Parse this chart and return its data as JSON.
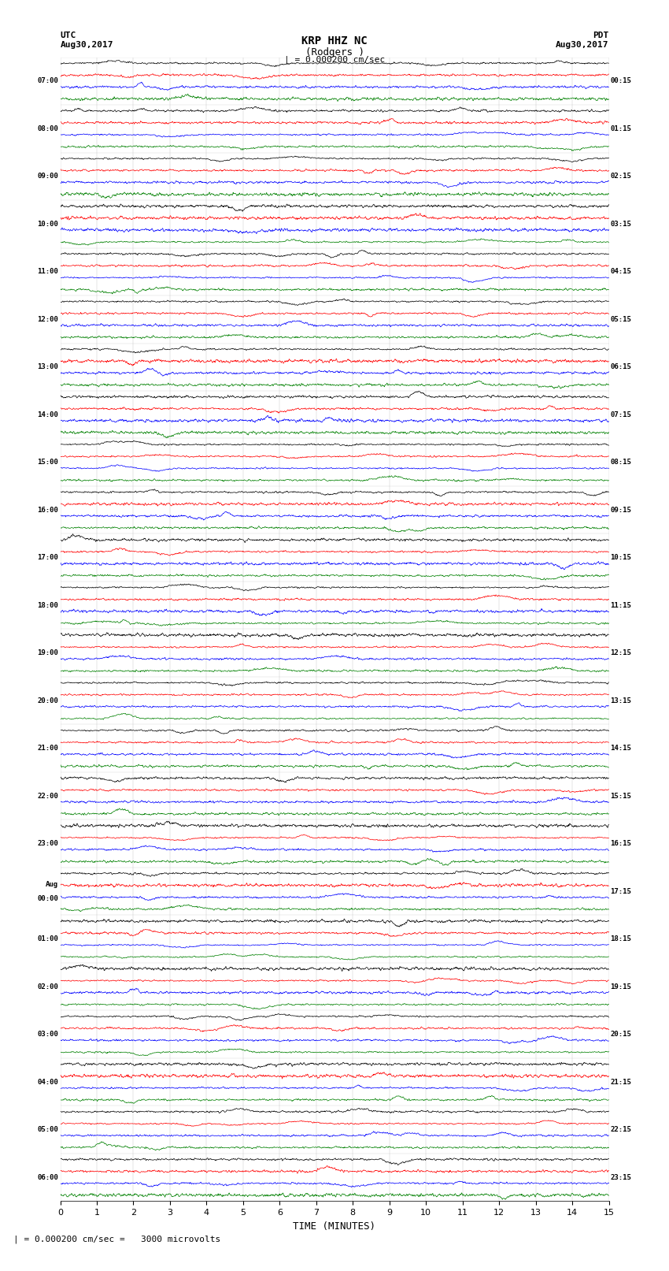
{
  "title_line1": "KRP HHZ NC",
  "title_line2": "(Rodgers )",
  "scale_label": "| = 0.000200 cm/sec",
  "scale_label_bottom": "| = 0.000200 cm/sec =   3000 microvolts",
  "xlabel": "TIME (MINUTES)",
  "left_header_line1": "UTC",
  "left_header_line2": "Aug30,2017",
  "right_header_line1": "PDT",
  "right_header_line2": "Aug30,2017",
  "left_times": [
    "07:00",
    "08:00",
    "09:00",
    "10:00",
    "11:00",
    "12:00",
    "13:00",
    "14:00",
    "15:00",
    "16:00",
    "17:00",
    "18:00",
    "19:00",
    "20:00",
    "21:00",
    "22:00",
    "23:00",
    "Aug",
    "01:00",
    "02:00",
    "03:00",
    "04:00",
    "05:00",
    "06:00"
  ],
  "left_times_sub": [
    "",
    "",
    "",
    "",
    "",
    "",
    "",
    "",
    "",
    "",
    "",
    "",
    "",
    "",
    "",
    "",
    "",
    "00:00",
    "",
    "",
    "",
    "",
    "",
    ""
  ],
  "right_times": [
    "00:15",
    "01:15",
    "02:15",
    "03:15",
    "04:15",
    "05:15",
    "06:15",
    "07:15",
    "08:15",
    "09:15",
    "10:15",
    "11:15",
    "12:15",
    "13:15",
    "14:15",
    "15:15",
    "16:15",
    "17:15",
    "18:15",
    "19:15",
    "20:15",
    "21:15",
    "22:15",
    "23:15"
  ],
  "n_rows": 24,
  "n_traces_per_row": 4,
  "n_samples": 1800,
  "time_minutes": 15,
  "bg_color": "white",
  "trace_color_order": [
    "black",
    "red",
    "blue",
    "green"
  ],
  "trace_amplitude": 0.018,
  "noise_base": 0.4,
  "grid_color": "#aaaaaa",
  "grid_linewidth": 0.3
}
